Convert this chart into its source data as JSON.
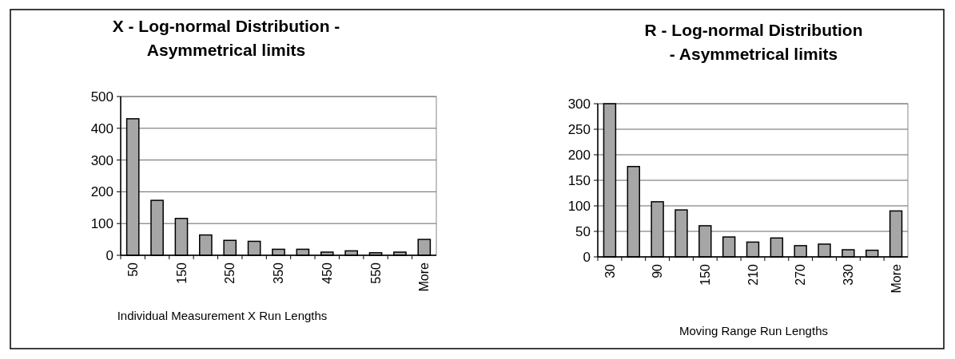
{
  "chart_data": [
    {
      "type": "bar",
      "title": "X - Log-normal Distribution -\nAsymmetrical limits",
      "xlabel": "Individual Measurement X Run Lengths",
      "categories": [
        "50",
        null,
        "150",
        null,
        "250",
        null,
        "350",
        null,
        "450",
        null,
        "550",
        null,
        "More"
      ],
      "values": [
        430,
        173,
        116,
        64,
        47,
        44,
        19,
        19,
        10,
        14,
        8,
        10,
        50
      ],
      "color": "#a6a6a6",
      "ylim": [
        0,
        500
      ],
      "yticks": [
        0,
        100,
        200,
        300,
        400,
        500
      ],
      "grid": "y"
    },
    {
      "type": "bar",
      "title": "R - Log-normal Distribution\n- Asymmetrical  limits",
      "xlabel": "Moving Range Run Lengths",
      "categories": [
        "30",
        null,
        "90",
        null,
        "150",
        null,
        "210",
        null,
        "270",
        null,
        "330",
        null,
        "More"
      ],
      "values": [
        300,
        177,
        108,
        92,
        61,
        39,
        29,
        37,
        22,
        25,
        14,
        13,
        90
      ],
      "color": "#a6a6a6",
      "ylim": [
        0,
        300
      ],
      "yticks": [
        0,
        50,
        100,
        150,
        200,
        250,
        300
      ],
      "grid": "y"
    }
  ]
}
